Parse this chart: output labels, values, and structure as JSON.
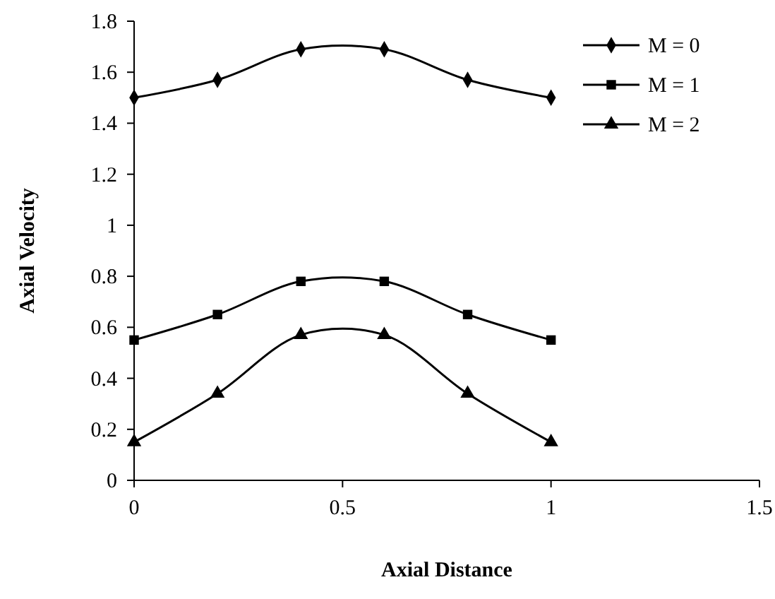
{
  "chart_data": {
    "type": "line",
    "xlabel": "Axial Distance",
    "ylabel": "Axial Velocity",
    "x": [
      0,
      0.2,
      0.4,
      0.6,
      0.8,
      1
    ],
    "series": [
      {
        "name": "M = 0",
        "color": "#000000",
        "marker": "diamond",
        "values": [
          1.5,
          1.57,
          1.69,
          1.69,
          1.57,
          1.5
        ]
      },
      {
        "name": "M = 1",
        "color": "#000000",
        "marker": "square",
        "values": [
          0.55,
          0.65,
          0.78,
          0.78,
          0.65,
          0.55
        ]
      },
      {
        "name": "M = 2",
        "color": "#000000",
        "marker": "triangle",
        "values": [
          0.15,
          0.34,
          0.57,
          0.57,
          0.34,
          0.15
        ]
      }
    ],
    "xlim": [
      0,
      1.5
    ],
    "xticks": [
      0,
      0.5,
      1,
      1.5
    ],
    "ylim": [
      0,
      1.8
    ],
    "yticks": [
      0,
      0.2,
      0.4,
      0.6,
      0.8,
      1,
      1.2,
      1.4,
      1.6,
      1.8
    ],
    "grid": false,
    "legend": "top right",
    "line_style": "solid"
  }
}
